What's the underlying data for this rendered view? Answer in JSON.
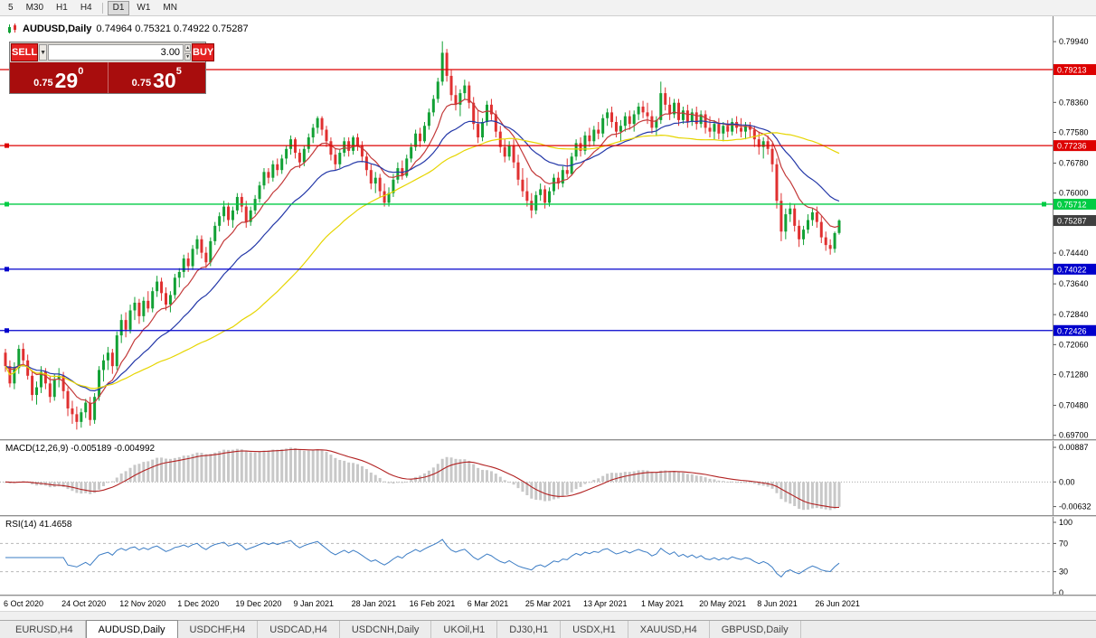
{
  "toolbar": {
    "timeframes": [
      {
        "label": "5"
      },
      {
        "label": "M30"
      },
      {
        "label": "H1"
      },
      {
        "label": "H4"
      },
      {
        "label": "D1",
        "active": true
      },
      {
        "label": "W1"
      },
      {
        "label": "MN"
      }
    ]
  },
  "chart_header": {
    "symbol_period": "AUDUSD,Daily",
    "ohlc_line": "0.74964 0.75321 0.74922 0.75287"
  },
  "trade_panel": {
    "sell_label": "SELL",
    "buy_label": "BUY",
    "volume": "3.00",
    "sell_price_prefix": "0.75",
    "sell_price_big": "29",
    "sell_price_sup": "0",
    "buy_price_prefix": "0.75",
    "buy_price_big": "30",
    "buy_price_sup": "5"
  },
  "chart_data": {
    "type": "candlestick",
    "symbol": "AUDUSD",
    "timeframe": "Daily",
    "open": 0.74964,
    "high": 0.75321,
    "low": 0.74922,
    "close": 0.75287,
    "price_range": [
      0.696,
      0.806
    ],
    "colors": {
      "up": "#12a135",
      "down": "#e03030"
    },
    "y_axis": [
      {
        "value": 0.7994,
        "label": "0.79940"
      },
      {
        "value": 0.7836,
        "label": "0.78360"
      },
      {
        "value": 0.7758,
        "label": "0.77580"
      },
      {
        "value": 0.7678,
        "label": "0.76780"
      },
      {
        "value": 0.76,
        "label": "0.76000"
      },
      {
        "value": 0.7444,
        "label": "0.74440"
      },
      {
        "value": 0.7364,
        "label": "0.73640"
      },
      {
        "value": 0.7284,
        "label": "0.72840"
      },
      {
        "value": 0.7206,
        "label": "0.72060"
      },
      {
        "value": 0.7128,
        "label": "0.71280"
      },
      {
        "value": 0.7048,
        "label": "0.70480"
      },
      {
        "value": 0.697,
        "label": "0.69700"
      }
    ],
    "levels": [
      {
        "value": 0.79213,
        "label": "0.79213",
        "color": "#dd0000",
        "handle_left": false,
        "handle_right": false
      },
      {
        "value": 0.77236,
        "label": "0.77236",
        "color": "#dd0000",
        "handle_left": true,
        "handle_right": false
      },
      {
        "value": 0.75712,
        "label": "0.75712",
        "color": "#00cc44",
        "handle_left": true,
        "handle_right": true
      },
      {
        "value": 0.74022,
        "label": "0.74022",
        "color": "#0000cc",
        "handle_left": true,
        "handle_right": false
      },
      {
        "value": 0.72426,
        "label": "0.72426",
        "color": "#0000cc",
        "handle_left": true,
        "handle_right": false
      }
    ],
    "current_price": {
      "value": 0.75287,
      "label": "0.75287",
      "color": "#3f3f3f"
    },
    "ma": [
      {
        "name": "ma-fast",
        "period": 10,
        "type": "ema",
        "color": "#c33a3a"
      },
      {
        "name": "ma-mid",
        "period": 24,
        "type": "ema",
        "color": "#2438a8"
      },
      {
        "name": "ma-slow",
        "period": 52,
        "type": "sma",
        "color": "#e6d500"
      }
    ],
    "macd": {
      "label_line": "MACD(12,26,9) -0.005189 -0.004992",
      "fast": 12,
      "slow": 26,
      "signal": 9,
      "value_range": [
        -0.0085,
        0.0105
      ],
      "hist_color": "#c8c8c8",
      "signal_color": "#b22222",
      "axis": [
        {
          "value": 0.00887,
          "label": "0.00887"
        },
        {
          "value": 0.0,
          "label": "0.00"
        },
        {
          "value": -0.00632,
          "label": "-0.00632"
        }
      ]
    },
    "rsi": {
      "label_line": "RSI(14) 41.4658",
      "period": 14,
      "value": 41.4658,
      "color": "#3b7cc4",
      "dashed_levels": [
        70,
        30
      ],
      "axis": [
        {
          "value": 100,
          "label": "100"
        },
        {
          "value": 70,
          "label": "70"
        },
        {
          "value": 30,
          "label": "30"
        },
        {
          "value": 0,
          "label": "0"
        }
      ]
    },
    "date_labels": [
      "6 Oct 2020",
      "24 Oct 2020",
      "12 Nov 2020",
      "1 Dec 2020",
      "19 Dec 2020",
      "9 Jan 2021",
      "28 Jan 2021",
      "16 Feb 2021",
      "6 Mar 2021",
      "25 Mar 2021",
      "13 Apr 2021",
      "1 May 2021",
      "20 May 2021",
      "8 Jun 2021",
      "26 Jun 2021"
    ],
    "candles": [
      [
        0.7185,
        0.7195,
        0.7135,
        0.715
      ],
      [
        0.715,
        0.7165,
        0.7095,
        0.7105
      ],
      [
        0.7105,
        0.716,
        0.709,
        0.7145
      ],
      [
        0.7145,
        0.7205,
        0.713,
        0.7195
      ],
      [
        0.7195,
        0.721,
        0.7155,
        0.7165
      ],
      [
        0.7165,
        0.718,
        0.7115,
        0.7125
      ],
      [
        0.7125,
        0.714,
        0.706,
        0.7075
      ],
      [
        0.7075,
        0.711,
        0.705,
        0.7095
      ],
      [
        0.7095,
        0.715,
        0.708,
        0.7135
      ],
      [
        0.7135,
        0.7145,
        0.709,
        0.7105
      ],
      [
        0.7105,
        0.7125,
        0.7055,
        0.707
      ],
      [
        0.707,
        0.713,
        0.706,
        0.7115
      ],
      [
        0.7115,
        0.7145,
        0.7095,
        0.7125
      ],
      [
        0.7125,
        0.7135,
        0.7065,
        0.7085
      ],
      [
        0.7085,
        0.7095,
        0.702,
        0.704
      ],
      [
        0.704,
        0.706,
        0.7,
        0.7025
      ],
      [
        0.7025,
        0.7045,
        0.6985,
        0.7005
      ],
      [
        0.7005,
        0.704,
        0.699,
        0.703
      ],
      [
        0.703,
        0.7065,
        0.7015,
        0.7055
      ],
      [
        0.7055,
        0.707,
        0.6995,
        0.701
      ],
      [
        0.701,
        0.708,
        0.7,
        0.707
      ],
      [
        0.707,
        0.715,
        0.706,
        0.714
      ],
      [
        0.714,
        0.718,
        0.711,
        0.7165
      ],
      [
        0.7165,
        0.72,
        0.714,
        0.7185
      ],
      [
        0.7185,
        0.7195,
        0.713,
        0.715
      ],
      [
        0.715,
        0.724,
        0.714,
        0.723
      ],
      [
        0.723,
        0.7285,
        0.721,
        0.727
      ],
      [
        0.727,
        0.729,
        0.7225,
        0.7245
      ],
      [
        0.7245,
        0.731,
        0.7235,
        0.7295
      ],
      [
        0.7295,
        0.733,
        0.727,
        0.7315
      ],
      [
        0.7315,
        0.7325,
        0.726,
        0.728
      ],
      [
        0.728,
        0.733,
        0.7265,
        0.732
      ],
      [
        0.732,
        0.7345,
        0.729,
        0.73
      ],
      [
        0.73,
        0.7355,
        0.729,
        0.7345
      ],
      [
        0.7345,
        0.7385,
        0.733,
        0.737
      ],
      [
        0.737,
        0.738,
        0.732,
        0.734
      ],
      [
        0.734,
        0.7355,
        0.7295,
        0.731
      ],
      [
        0.731,
        0.7345,
        0.729,
        0.7335
      ],
      [
        0.7335,
        0.739,
        0.7325,
        0.738
      ],
      [
        0.738,
        0.7405,
        0.7355,
        0.7395
      ],
      [
        0.7395,
        0.744,
        0.738,
        0.743
      ],
      [
        0.743,
        0.7445,
        0.7395,
        0.741
      ],
      [
        0.741,
        0.7465,
        0.74,
        0.7455
      ],
      [
        0.7455,
        0.749,
        0.744,
        0.748
      ],
      [
        0.748,
        0.749,
        0.743,
        0.7445
      ],
      [
        0.7445,
        0.746,
        0.7405,
        0.742
      ],
      [
        0.742,
        0.7485,
        0.741,
        0.7475
      ],
      [
        0.7475,
        0.7525,
        0.7465,
        0.7515
      ],
      [
        0.7515,
        0.755,
        0.75,
        0.754
      ],
      [
        0.754,
        0.758,
        0.7525,
        0.7565
      ],
      [
        0.7565,
        0.7575,
        0.7515,
        0.753
      ],
      [
        0.753,
        0.7565,
        0.751,
        0.7555
      ],
      [
        0.7555,
        0.76,
        0.7545,
        0.759
      ],
      [
        0.759,
        0.76,
        0.755,
        0.7565
      ],
      [
        0.7565,
        0.758,
        0.751,
        0.7525
      ],
      [
        0.7525,
        0.7565,
        0.7515,
        0.7555
      ],
      [
        0.7555,
        0.7595,
        0.7545,
        0.7585
      ],
      [
        0.7585,
        0.763,
        0.7575,
        0.762
      ],
      [
        0.762,
        0.7665,
        0.761,
        0.7655
      ],
      [
        0.7655,
        0.7665,
        0.7625,
        0.764
      ],
      [
        0.764,
        0.7685,
        0.763,
        0.7675
      ],
      [
        0.7675,
        0.769,
        0.7645,
        0.766
      ],
      [
        0.766,
        0.77,
        0.765,
        0.769
      ],
      [
        0.769,
        0.7725,
        0.7675,
        0.7715
      ],
      [
        0.7715,
        0.775,
        0.77,
        0.774
      ],
      [
        0.774,
        0.7745,
        0.769,
        0.7705
      ],
      [
        0.7705,
        0.7715,
        0.7665,
        0.768
      ],
      [
        0.768,
        0.7725,
        0.767,
        0.7715
      ],
      [
        0.7715,
        0.7755,
        0.7705,
        0.7745
      ],
      [
        0.7745,
        0.778,
        0.773,
        0.777
      ],
      [
        0.777,
        0.78,
        0.7755,
        0.7795
      ],
      [
        0.7795,
        0.78,
        0.775,
        0.7765
      ],
      [
        0.7765,
        0.7775,
        0.772,
        0.7735
      ],
      [
        0.7735,
        0.7745,
        0.7685,
        0.77
      ],
      [
        0.77,
        0.7715,
        0.766,
        0.7675
      ],
      [
        0.7675,
        0.7715,
        0.7665,
        0.7705
      ],
      [
        0.7705,
        0.7745,
        0.7695,
        0.7735
      ],
      [
        0.7735,
        0.7745,
        0.7695,
        0.771
      ],
      [
        0.771,
        0.775,
        0.77,
        0.7745
      ],
      [
        0.7745,
        0.7755,
        0.771,
        0.7725
      ],
      [
        0.7725,
        0.7735,
        0.768,
        0.7695
      ],
      [
        0.7695,
        0.7705,
        0.7645,
        0.766
      ],
      [
        0.766,
        0.7675,
        0.761,
        0.7625
      ],
      [
        0.7625,
        0.7655,
        0.76,
        0.764
      ],
      [
        0.764,
        0.765,
        0.759,
        0.7605
      ],
      [
        0.7605,
        0.7625,
        0.7565,
        0.7575
      ],
      [
        0.7575,
        0.7615,
        0.7565,
        0.76
      ],
      [
        0.76,
        0.765,
        0.759,
        0.7635
      ],
      [
        0.7635,
        0.768,
        0.7625,
        0.7665
      ],
      [
        0.7665,
        0.7685,
        0.7635,
        0.7645
      ],
      [
        0.7645,
        0.77,
        0.764,
        0.769
      ],
      [
        0.769,
        0.773,
        0.768,
        0.772
      ],
      [
        0.772,
        0.7765,
        0.771,
        0.7755
      ],
      [
        0.7755,
        0.777,
        0.772,
        0.7735
      ],
      [
        0.7735,
        0.7785,
        0.773,
        0.7775
      ],
      [
        0.7775,
        0.782,
        0.7765,
        0.781
      ],
      [
        0.781,
        0.7855,
        0.78,
        0.7845
      ],
      [
        0.7845,
        0.79,
        0.7835,
        0.789
      ],
      [
        0.789,
        0.7995,
        0.788,
        0.7965
      ],
      [
        0.7965,
        0.7975,
        0.789,
        0.7905
      ],
      [
        0.7905,
        0.792,
        0.784,
        0.7855
      ],
      [
        0.7855,
        0.788,
        0.7815,
        0.783
      ],
      [
        0.783,
        0.787,
        0.78,
        0.786
      ],
      [
        0.786,
        0.7895,
        0.7845,
        0.788
      ],
      [
        0.788,
        0.789,
        0.782,
        0.7835
      ],
      [
        0.7835,
        0.785,
        0.7765,
        0.778
      ],
      [
        0.778,
        0.7815,
        0.773,
        0.7745
      ],
      [
        0.7745,
        0.7795,
        0.7735,
        0.7785
      ],
      [
        0.7785,
        0.784,
        0.7775,
        0.783
      ],
      [
        0.783,
        0.7845,
        0.779,
        0.7805
      ],
      [
        0.7805,
        0.7815,
        0.7745,
        0.776
      ],
      [
        0.776,
        0.7775,
        0.7705,
        0.772
      ],
      [
        0.772,
        0.774,
        0.768,
        0.7695
      ],
      [
        0.7695,
        0.7735,
        0.7685,
        0.7725
      ],
      [
        0.7725,
        0.774,
        0.7665,
        0.768
      ],
      [
        0.768,
        0.77,
        0.762,
        0.7635
      ],
      [
        0.7635,
        0.7665,
        0.759,
        0.7605
      ],
      [
        0.7605,
        0.764,
        0.7565,
        0.758
      ],
      [
        0.758,
        0.76,
        0.7535,
        0.7555
      ],
      [
        0.7555,
        0.7605,
        0.7545,
        0.7595
      ],
      [
        0.7595,
        0.7625,
        0.758,
        0.761
      ],
      [
        0.761,
        0.762,
        0.756,
        0.7575
      ],
      [
        0.7575,
        0.7615,
        0.7565,
        0.7605
      ],
      [
        0.7605,
        0.765,
        0.7595,
        0.764
      ],
      [
        0.764,
        0.7655,
        0.761,
        0.7625
      ],
      [
        0.7625,
        0.767,
        0.7615,
        0.766
      ],
      [
        0.766,
        0.769,
        0.764,
        0.765
      ],
      [
        0.765,
        0.7705,
        0.7645,
        0.7695
      ],
      [
        0.7695,
        0.774,
        0.7685,
        0.773
      ],
      [
        0.773,
        0.7745,
        0.7695,
        0.771
      ],
      [
        0.771,
        0.776,
        0.77,
        0.775
      ],
      [
        0.775,
        0.777,
        0.772,
        0.7735
      ],
      [
        0.7735,
        0.7775,
        0.7725,
        0.7765
      ],
      [
        0.7765,
        0.7785,
        0.774,
        0.7755
      ],
      [
        0.7755,
        0.7805,
        0.7745,
        0.7795
      ],
      [
        0.7795,
        0.782,
        0.7775,
        0.781
      ],
      [
        0.781,
        0.7825,
        0.777,
        0.7785
      ],
      [
        0.7785,
        0.78,
        0.7745,
        0.776
      ],
      [
        0.776,
        0.779,
        0.7735,
        0.7775
      ],
      [
        0.7775,
        0.781,
        0.776,
        0.78
      ],
      [
        0.78,
        0.7815,
        0.7765,
        0.778
      ],
      [
        0.778,
        0.7815,
        0.776,
        0.7805
      ],
      [
        0.7805,
        0.7835,
        0.779,
        0.7825
      ],
      [
        0.7825,
        0.784,
        0.7795,
        0.781
      ],
      [
        0.781,
        0.7835,
        0.778,
        0.78
      ],
      [
        0.78,
        0.7815,
        0.7755,
        0.777
      ],
      [
        0.777,
        0.78,
        0.775,
        0.779
      ],
      [
        0.779,
        0.789,
        0.778,
        0.786
      ],
      [
        0.786,
        0.7875,
        0.7815,
        0.783
      ],
      [
        0.783,
        0.785,
        0.779,
        0.7805
      ],
      [
        0.7805,
        0.7845,
        0.7795,
        0.7835
      ],
      [
        0.7835,
        0.7845,
        0.7775,
        0.779
      ],
      [
        0.779,
        0.7825,
        0.778,
        0.7815
      ],
      [
        0.7815,
        0.783,
        0.777,
        0.7785
      ],
      [
        0.7785,
        0.782,
        0.7775,
        0.781
      ],
      [
        0.781,
        0.7825,
        0.7765,
        0.778
      ],
      [
        0.778,
        0.7815,
        0.777,
        0.7805
      ],
      [
        0.7805,
        0.7815,
        0.7755,
        0.777
      ],
      [
        0.777,
        0.78,
        0.7745,
        0.776
      ],
      [
        0.776,
        0.779,
        0.774,
        0.778
      ],
      [
        0.778,
        0.7795,
        0.774,
        0.7755
      ],
      [
        0.7755,
        0.7785,
        0.7735,
        0.7775
      ],
      [
        0.7775,
        0.779,
        0.7745,
        0.776
      ],
      [
        0.776,
        0.7795,
        0.775,
        0.7785
      ],
      [
        0.7785,
        0.78,
        0.7755,
        0.777
      ],
      [
        0.777,
        0.7795,
        0.7745,
        0.776
      ],
      [
        0.776,
        0.7785,
        0.774,
        0.7775
      ],
      [
        0.7775,
        0.7785,
        0.7745,
        0.7765
      ],
      [
        0.7765,
        0.7775,
        0.772,
        0.774
      ],
      [
        0.774,
        0.776,
        0.77,
        0.772
      ],
      [
        0.772,
        0.7745,
        0.769,
        0.7735
      ],
      [
        0.7735,
        0.775,
        0.77,
        0.7715
      ],
      [
        0.7715,
        0.773,
        0.7655,
        0.7675
      ],
      [
        0.7675,
        0.769,
        0.756,
        0.758
      ],
      [
        0.758,
        0.76,
        0.7475,
        0.75
      ],
      [
        0.75,
        0.756,
        0.748,
        0.7545
      ],
      [
        0.7545,
        0.7575,
        0.7525,
        0.756
      ],
      [
        0.756,
        0.757,
        0.75,
        0.7515
      ],
      [
        0.7515,
        0.753,
        0.746,
        0.748
      ],
      [
        0.748,
        0.7515,
        0.7465,
        0.7505
      ],
      [
        0.7505,
        0.7545,
        0.7495,
        0.753
      ],
      [
        0.753,
        0.756,
        0.7515,
        0.755
      ],
      [
        0.755,
        0.7565,
        0.751,
        0.7525
      ],
      [
        0.7525,
        0.754,
        0.747,
        0.7485
      ],
      [
        0.7485,
        0.75,
        0.745,
        0.7465
      ],
      [
        0.7465,
        0.748,
        0.744,
        0.7455
      ],
      [
        0.7455,
        0.75,
        0.7445,
        0.7496
      ],
      [
        0.74964,
        0.75321,
        0.74922,
        0.75287
      ]
    ]
  },
  "tabs": [
    {
      "label": "EURUSD,H4"
    },
    {
      "label": "AUDUSD,Daily",
      "active": true
    },
    {
      "label": "USDCHF,H4"
    },
    {
      "label": "USDCAD,H4"
    },
    {
      "label": "USDCNH,Daily"
    },
    {
      "label": "UKOil,H1"
    },
    {
      "label": "DJ30,H1"
    },
    {
      "label": "USDX,H1"
    },
    {
      "label": "XAUUSD,H4"
    },
    {
      "label": "GBPUSD,Daily"
    }
  ]
}
